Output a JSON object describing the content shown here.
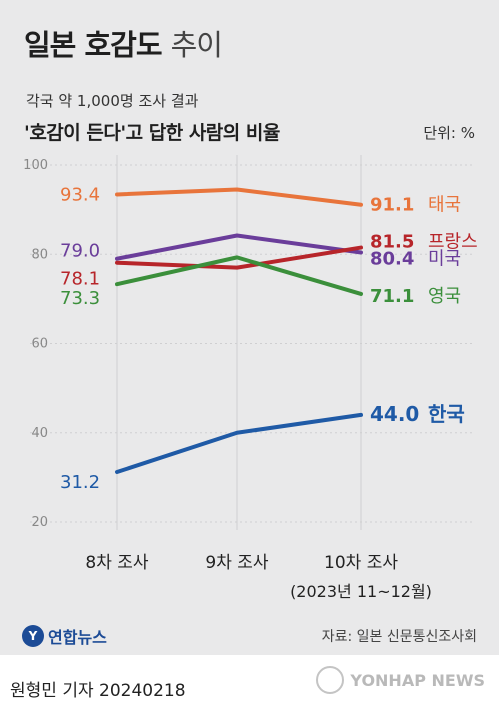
{
  "header": {
    "title_bold": "일본 호감도",
    "title_light": "추이",
    "subtitle1": "각국 약 1,000명 조사 결과",
    "subtitle2": "'호감이 든다'고 답한 사람의 비율",
    "unit": "단위: %"
  },
  "chart_data": {
    "type": "line",
    "categories": [
      "8차 조사",
      "9차 조사",
      "10차 조사"
    ],
    "x_sublabel": "(2023년 11~12월)",
    "ylim": [
      20,
      100
    ],
    "yticks": [
      "20",
      "40",
      "60",
      "80",
      "100"
    ],
    "grid": true,
    "series": [
      {
        "name": "태국",
        "color": "#e8743b",
        "values": [
          93.4,
          94.5,
          91.1
        ],
        "labels": [
          "93.4",
          null,
          "91.1"
        ]
      },
      {
        "name": "미국",
        "color": "#6a3d9a",
        "values": [
          79.0,
          84.2,
          80.4
        ],
        "labels": [
          "79.0",
          null,
          "80.4"
        ]
      },
      {
        "name": "프랑스",
        "color": "#b7252a",
        "values": [
          78.1,
          77.0,
          81.5
        ],
        "labels": [
          "78.1",
          null,
          "81.5"
        ]
      },
      {
        "name": "영국",
        "color": "#3b8f3b",
        "values": [
          73.3,
          79.3,
          71.1
        ],
        "labels": [
          "73.3",
          null,
          "71.1"
        ]
      },
      {
        "name": "한국",
        "color": "#1f5aa6",
        "values": [
          31.2,
          40.0,
          44.0
        ],
        "labels": [
          "31.2",
          null,
          "44.0"
        ]
      }
    ]
  },
  "footer": {
    "logo": "연합뉴스",
    "logo_mark": "Y",
    "source": "자료: 일본 신문통신조사회",
    "reporter": "원형민 기자  20240218",
    "watermark": "YONHAP NEWS"
  }
}
